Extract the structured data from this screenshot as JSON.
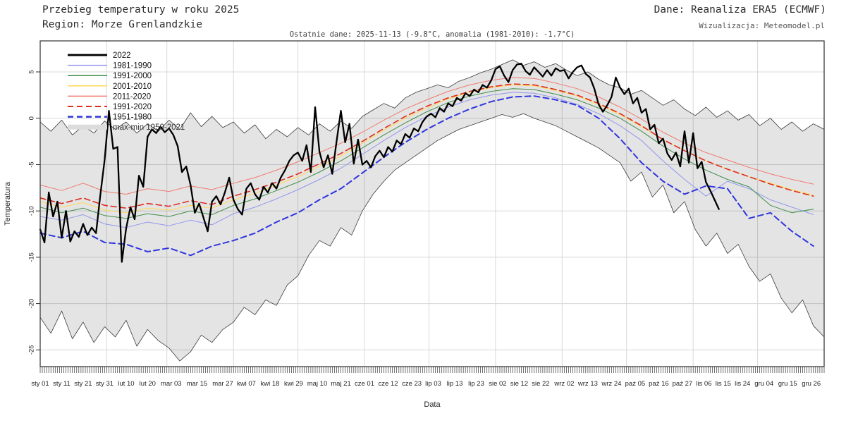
{
  "header": {
    "title": "Przebieg temperatury w roku 2025",
    "region": "Region: Morze Grenlandzkie",
    "source": "Dane: Reanaliza ERA5 (ECMWF)",
    "visualization": "Wizualizacja: Meteomodel.pl",
    "last_data": "Ostatnie dane: 2025-11-13 (-9.8°C, anomalia (1981-2010): -1.7°C)"
  },
  "chart_data": {
    "type": "line",
    "title": "Przebieg temperatury w roku 2025 — Morze Grenlandzkie",
    "xlabel": "Data",
    "ylabel": "Temperatura",
    "ylim": [
      -26.8,
      8.35
    ],
    "y_ticks": [
      5,
      0,
      -5,
      -10,
      -15,
      -20,
      -25
    ],
    "x_days_total": 366,
    "grid": true,
    "legend_position": "top-left",
    "month_grid_days": [
      32,
      60,
      91,
      121,
      152,
      182,
      213,
      244,
      274,
      305,
      335
    ],
    "x_ticks": [
      {
        "label": "sty 01",
        "day": 1
      },
      {
        "label": "sty 11",
        "day": 11
      },
      {
        "label": "sty 21",
        "day": 21
      },
      {
        "label": "sty 31",
        "day": 31
      },
      {
        "label": "lut 10",
        "day": 41
      },
      {
        "label": "lut 20",
        "day": 51
      },
      {
        "label": "mar 03",
        "day": 62
      },
      {
        "label": "mar 15",
        "day": 74
      },
      {
        "label": "mar 27",
        "day": 86
      },
      {
        "label": "kwi 07",
        "day": 97
      },
      {
        "label": "kwi 18",
        "day": 108
      },
      {
        "label": "kwi 29",
        "day": 119
      },
      {
        "label": "maj 10",
        "day": 130
      },
      {
        "label": "maj 21",
        "day": 141
      },
      {
        "label": "cze 01",
        "day": 152
      },
      {
        "label": "cze 12",
        "day": 163
      },
      {
        "label": "cze 23",
        "day": 174
      },
      {
        "label": "lip 03",
        "day": 184
      },
      {
        "label": "lip 13",
        "day": 194
      },
      {
        "label": "lip 23",
        "day": 204
      },
      {
        "label": "sie 02",
        "day": 214
      },
      {
        "label": "sie 12",
        "day": 224
      },
      {
        "label": "sie 22",
        "day": 234
      },
      {
        "label": "wrz 02",
        "day": 245
      },
      {
        "label": "wrz 13",
        "day": 256
      },
      {
        "label": "wrz 24",
        "day": 267
      },
      {
        "label": "paź 05",
        "day": 278
      },
      {
        "label": "paź 16",
        "day": 289
      },
      {
        "label": "paź 27",
        "day": 300
      },
      {
        "label": "lis 06",
        "day": 310
      },
      {
        "label": "lis 15",
        "day": 319
      },
      {
        "label": "lis 24",
        "day": 328
      },
      {
        "label": "gru 04",
        "day": 338
      },
      {
        "label": "gru 15",
        "day": 349
      },
      {
        "label": "gru 26",
        "day": 360
      }
    ],
    "style": {
      "grid_color": "#d8d8d8",
      "border_color": "#2f2f2f",
      "tick_label_color": "#262626",
      "band_fill": "rgba(0,0,0,0.105)",
      "band_legend_swatch": "#dcdcdc"
    },
    "band": {
      "name": "max-min 1950-2021",
      "edge_color": "#3b3b3b",
      "x0": 1,
      "dx": 5,
      "max": [
        -0.4,
        -1.4,
        -0.2,
        -1.8,
        -0.8,
        -1.6,
        -0.3,
        -1.2,
        -0.4,
        -1.6,
        -0.6,
        -1.4,
        -0.2,
        -1.2,
        0.6,
        -0.9,
        0.2,
        -1.0,
        -0.4,
        -1.6,
        -0.7,
        -2.2,
        -1.2,
        -2.0,
        -1.0,
        -1.8,
        -0.6,
        -1.4,
        -0.3,
        -1.1,
        0.2,
        0.9,
        1.6,
        1.1,
        2.2,
        2.8,
        3.2,
        3.6,
        3.3,
        4.0,
        4.4,
        4.9,
        5.3,
        5.8,
        6.3,
        5.7,
        6.1,
        5.5,
        5.9,
        5.2,
        4.6,
        5.0,
        4.2,
        3.6,
        3.3,
        2.6,
        3.0,
        2.2,
        1.4,
        2.0,
        1.0,
        0.3,
        1.2,
        0.1,
        0.8,
        -0.2,
        0.4,
        -0.8,
        0.0,
        -1.2,
        -0.4,
        -1.4,
        -0.6,
        -1.2
      ],
      "min": [
        -21.5,
        -23.2,
        -20.8,
        -23.8,
        -22.0,
        -24.2,
        -22.5,
        -23.6,
        -21.8,
        -24.6,
        -22.8,
        -24.0,
        -24.8,
        -26.2,
        -25.2,
        -23.4,
        -24.2,
        -22.8,
        -22.0,
        -20.4,
        -21.2,
        -19.6,
        -20.2,
        -18.0,
        -17.0,
        -14.8,
        -13.2,
        -13.8,
        -11.8,
        -12.6,
        -10.0,
        -8.2,
        -6.8,
        -5.6,
        -4.8,
        -4.0,
        -3.2,
        -2.4,
        -1.8,
        -1.2,
        -0.8,
        -0.4,
        0.0,
        0.4,
        0.1,
        0.5,
        0.0,
        -0.4,
        -0.8,
        -1.4,
        -2.0,
        -2.6,
        -3.2,
        -4.0,
        -4.8,
        -6.8,
        -5.8,
        -8.5,
        -7.2,
        -10.2,
        -9.0,
        -12.0,
        -13.8,
        -12.4,
        -14.6,
        -13.6,
        -16.0,
        -17.6,
        -16.8,
        -19.4,
        -21.0,
        -19.6,
        -22.4,
        -23.6
      ]
    },
    "series": [
      {
        "name": "2022",
        "color": "#000000",
        "width": 2.3,
        "dash": null,
        "x0": 1,
        "dx": 2,
        "values": [
          -12.0,
          -13.4,
          -8.0,
          -10.6,
          -9.0,
          -12.9,
          -10.0,
          -13.3,
          -12.2,
          -12.8,
          -11.4,
          -12.6,
          -11.8,
          -12.4,
          -8.3,
          -4.5,
          0.8,
          -3.3,
          -3.1,
          -15.5,
          -11.9,
          -9.6,
          -10.9,
          -6.2,
          -7.4,
          -2.0,
          -1.2,
          -1.6,
          -0.9,
          -1.5,
          -1.1,
          -1.8,
          -3.0,
          -5.8,
          -5.2,
          -7.2,
          -10.2,
          -9.2,
          -10.7,
          -12.2,
          -9.0,
          -8.4,
          -9.3,
          -8.0,
          -6.4,
          -8.8,
          -9.8,
          -10.4,
          -7.6,
          -7.0,
          -8.2,
          -8.8,
          -7.4,
          -8.0,
          -7.0,
          -7.6,
          -6.4,
          -5.6,
          -4.6,
          -4.0,
          -3.7,
          -4.6,
          -2.9,
          -5.8,
          1.2,
          -3.6,
          -5.3,
          -4.0,
          -6.0,
          -2.5,
          0.8,
          -2.6,
          -0.6,
          -4.9,
          -2.3,
          -5.0,
          -4.6,
          -5.3,
          -4.1,
          -3.5,
          -4.2,
          -3.1,
          -3.6,
          -2.4,
          -2.8,
          -1.7,
          -2.1,
          -1.1,
          -1.4,
          -0.4,
          0.2,
          0.5,
          0.1,
          1.1,
          0.7,
          1.6,
          1.3,
          2.2,
          1.9,
          2.7,
          2.4,
          3.1,
          2.8,
          3.6,
          3.3,
          4.1,
          5.3,
          5.6,
          4.6,
          3.9,
          5.2,
          5.8,
          5.9,
          5.1,
          4.7,
          5.5,
          5.0,
          4.5,
          5.2,
          4.6,
          5.4,
          5.1,
          5.2,
          4.3,
          5.0,
          5.5,
          5.7,
          4.8,
          4.4,
          3.2,
          1.5,
          0.7,
          1.4,
          2.3,
          4.4,
          3.3,
          2.6,
          3.2,
          1.6,
          2.2,
          0.6,
          1.0,
          -1.2,
          -0.7,
          -2.7,
          -2.2,
          -3.8,
          -4.5,
          -3.7,
          -5.2,
          -1.4,
          -4.8,
          -1.6,
          -5.4,
          -4.7,
          -6.9,
          -7.8,
          -8.8,
          -9.8
        ]
      },
      {
        "name": "1981-1990",
        "color": "#9297ec",
        "width": 1.0,
        "dash": null,
        "x0": 1,
        "dx": 10,
        "values": [
          -10.6,
          -11.0,
          -10.4,
          -11.4,
          -11.8,
          -11.2,
          -11.6,
          -11.0,
          -11.5,
          -10.3,
          -9.6,
          -8.7,
          -7.7,
          -6.6,
          -5.4,
          -3.9,
          -2.4,
          -1.0,
          0.2,
          1.2,
          2.0,
          2.5,
          2.8,
          2.7,
          2.2,
          1.5,
          0.5,
          -0.8,
          -2.4,
          -4.6,
          -6.6,
          -8.4,
          -6.8,
          -7.6,
          -8.8,
          -9.6,
          -10.4
        ]
      },
      {
        "name": "1991-2000",
        "color": "#3e8e4b",
        "width": 1.0,
        "dash": null,
        "x0": 1,
        "dx": 10,
        "values": [
          -9.6,
          -10.2,
          -9.7,
          -10.5,
          -10.8,
          -10.3,
          -10.6,
          -10.0,
          -10.4,
          -9.4,
          -8.7,
          -7.8,
          -6.9,
          -5.8,
          -4.6,
          -3.2,
          -1.8,
          -0.5,
          0.7,
          1.7,
          2.4,
          2.9,
          3.2,
          3.1,
          2.6,
          2.0,
          1.1,
          0.0,
          -1.4,
          -3.0,
          -4.4,
          -5.6,
          -6.6,
          -7.4,
          -9.4,
          -10.2,
          -9.8
        ]
      },
      {
        "name": "2001-2010",
        "color": "#ffd957",
        "width": 1.0,
        "dash": null,
        "x0": 1,
        "dx": 10,
        "values": [
          -9.0,
          -9.6,
          -9.1,
          -9.9,
          -10.2,
          -9.7,
          -9.9,
          -9.4,
          -9.7,
          -8.8,
          -8.1,
          -7.2,
          -6.3,
          -5.2,
          -4.1,
          -2.7,
          -1.3,
          0.0,
          1.1,
          2.1,
          2.8,
          3.3,
          3.6,
          3.5,
          3.0,
          2.4,
          1.5,
          0.4,
          -0.9,
          -2.3,
          -3.5,
          -4.6,
          -5.5,
          -6.3,
          -7.0,
          -7.7,
          -8.3
        ]
      },
      {
        "name": "2011-2020",
        "color": "#f07b71",
        "width": 1.0,
        "dash": null,
        "x0": 1,
        "dx": 10,
        "values": [
          -7.2,
          -7.8,
          -7.0,
          -7.9,
          -8.2,
          -7.6,
          -7.9,
          -7.3,
          -7.7,
          -7.0,
          -6.4,
          -5.6,
          -4.7,
          -3.7,
          -2.7,
          -1.5,
          -0.2,
          1.0,
          2.0,
          2.9,
          3.6,
          4.1,
          4.4,
          4.3,
          3.8,
          3.2,
          2.3,
          1.2,
          -0.1,
          -1.5,
          -2.7,
          -3.7,
          -4.5,
          -5.3,
          -6.0,
          -6.6,
          -7.1
        ]
      },
      {
        "name": "1991-2020",
        "color": "#de2b20",
        "width": 1.6,
        "dash": "8,5",
        "x0": 1,
        "dx": 10,
        "values": [
          -8.6,
          -9.2,
          -8.6,
          -9.4,
          -9.7,
          -9.2,
          -9.5,
          -8.9,
          -9.3,
          -8.4,
          -7.7,
          -6.9,
          -6.0,
          -4.9,
          -3.8,
          -2.5,
          -1.1,
          0.2,
          1.3,
          2.2,
          2.9,
          3.4,
          3.7,
          3.6,
          3.1,
          2.5,
          1.6,
          0.5,
          -0.8,
          -2.3,
          -3.5,
          -4.6,
          -5.5,
          -6.3,
          -7.1,
          -7.8,
          -8.4
        ]
      },
      {
        "name": "1951-1980",
        "color": "#2f35dd",
        "width": 2.0,
        "dash": "8,5",
        "x0": 1,
        "dx": 10,
        "values": [
          -12.4,
          -12.9,
          -12.2,
          -13.4,
          -13.6,
          -14.4,
          -14.0,
          -14.8,
          -13.8,
          -13.2,
          -12.4,
          -11.2,
          -10.2,
          -8.8,
          -7.6,
          -5.9,
          -4.2,
          -2.6,
          -1.2,
          0.0,
          1.0,
          1.8,
          2.3,
          2.4,
          2.0,
          1.4,
          0.0,
          -2.2,
          -4.8,
          -6.8,
          -8.2,
          -7.3,
          -7.6,
          -10.8,
          -10.2,
          -12.2,
          -13.8
        ]
      }
    ]
  }
}
